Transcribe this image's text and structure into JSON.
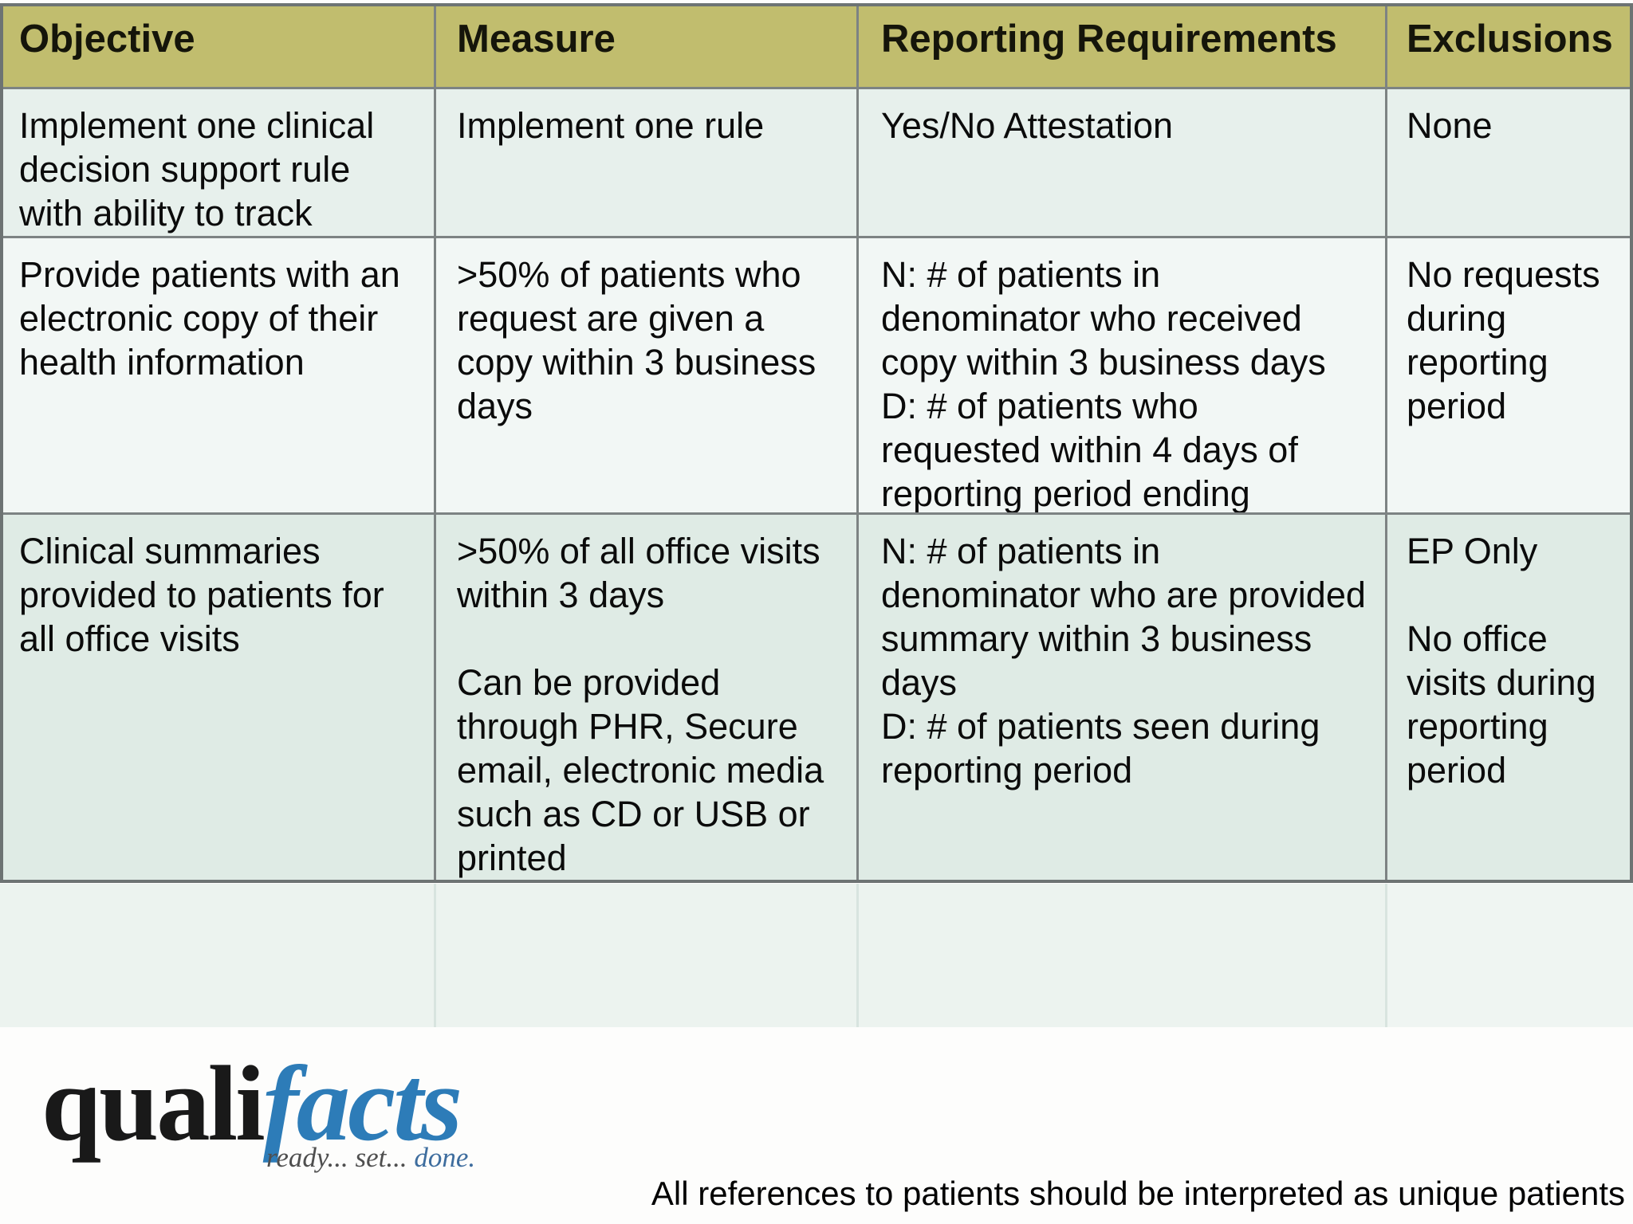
{
  "table": {
    "headers": [
      "Objective",
      "Measure",
      "Reporting Requirements",
      "Exclusions"
    ],
    "rows": [
      {
        "objective": [
          "Implement one clinical",
          "decision support rule",
          "with ability to track"
        ],
        "measure": [
          "Implement one rule"
        ],
        "reporting": [
          "Yes/No Attestation"
        ],
        "exclusions": [
          "None"
        ]
      },
      {
        "objective": [
          "Provide patients with an",
          "electronic copy of their",
          "health information"
        ],
        "measure": [
          ">50% of patients who",
          "request are given a",
          "copy within 3 business",
          "days"
        ],
        "reporting": [
          "N: # of patients in",
          "denominator who received",
          "copy within 3 business days",
          "D: # of patients who",
          "requested within 4 days of",
          "reporting period ending"
        ],
        "exclusions": [
          "No requests",
          "during",
          "reporting",
          "period"
        ]
      },
      {
        "objective": [
          "Clinical summaries",
          "provided to patients for",
          "all office visits"
        ],
        "measure": [
          ">50% of all office visits",
          "within 3 days",
          "",
          "Can be provided",
          "through PHR, Secure",
          "email, electronic media",
          "such as CD or USB or",
          "printed"
        ],
        "reporting": [
          "N: # of patients in",
          "denominator who are provided",
          "summary within 3 business",
          "days",
          "D: # of patients seen during",
          "reporting period"
        ],
        "exclusions": [
          "EP Only",
          "",
          "No office",
          "visits during",
          "reporting",
          "period"
        ]
      }
    ]
  },
  "logo": {
    "word_black": "quali",
    "word_blue": "facts",
    "tagline_gray": "ready... set...",
    "tagline_blue": " done."
  },
  "footer": {
    "note": "All references to patients should be interpreted as unique patients"
  },
  "colors": {
    "header_bg": "#c1bd6e",
    "row1_bg": "#e7f0ec",
    "row2_bg": "#f2f7f5",
    "row3_bg": "#dfebe5",
    "empty_row_bg": "#ecf3ef",
    "grid_border": "#7d8383",
    "logo_blue": "#2d7cb8",
    "tagline_blue": "#3e6d9e"
  }
}
